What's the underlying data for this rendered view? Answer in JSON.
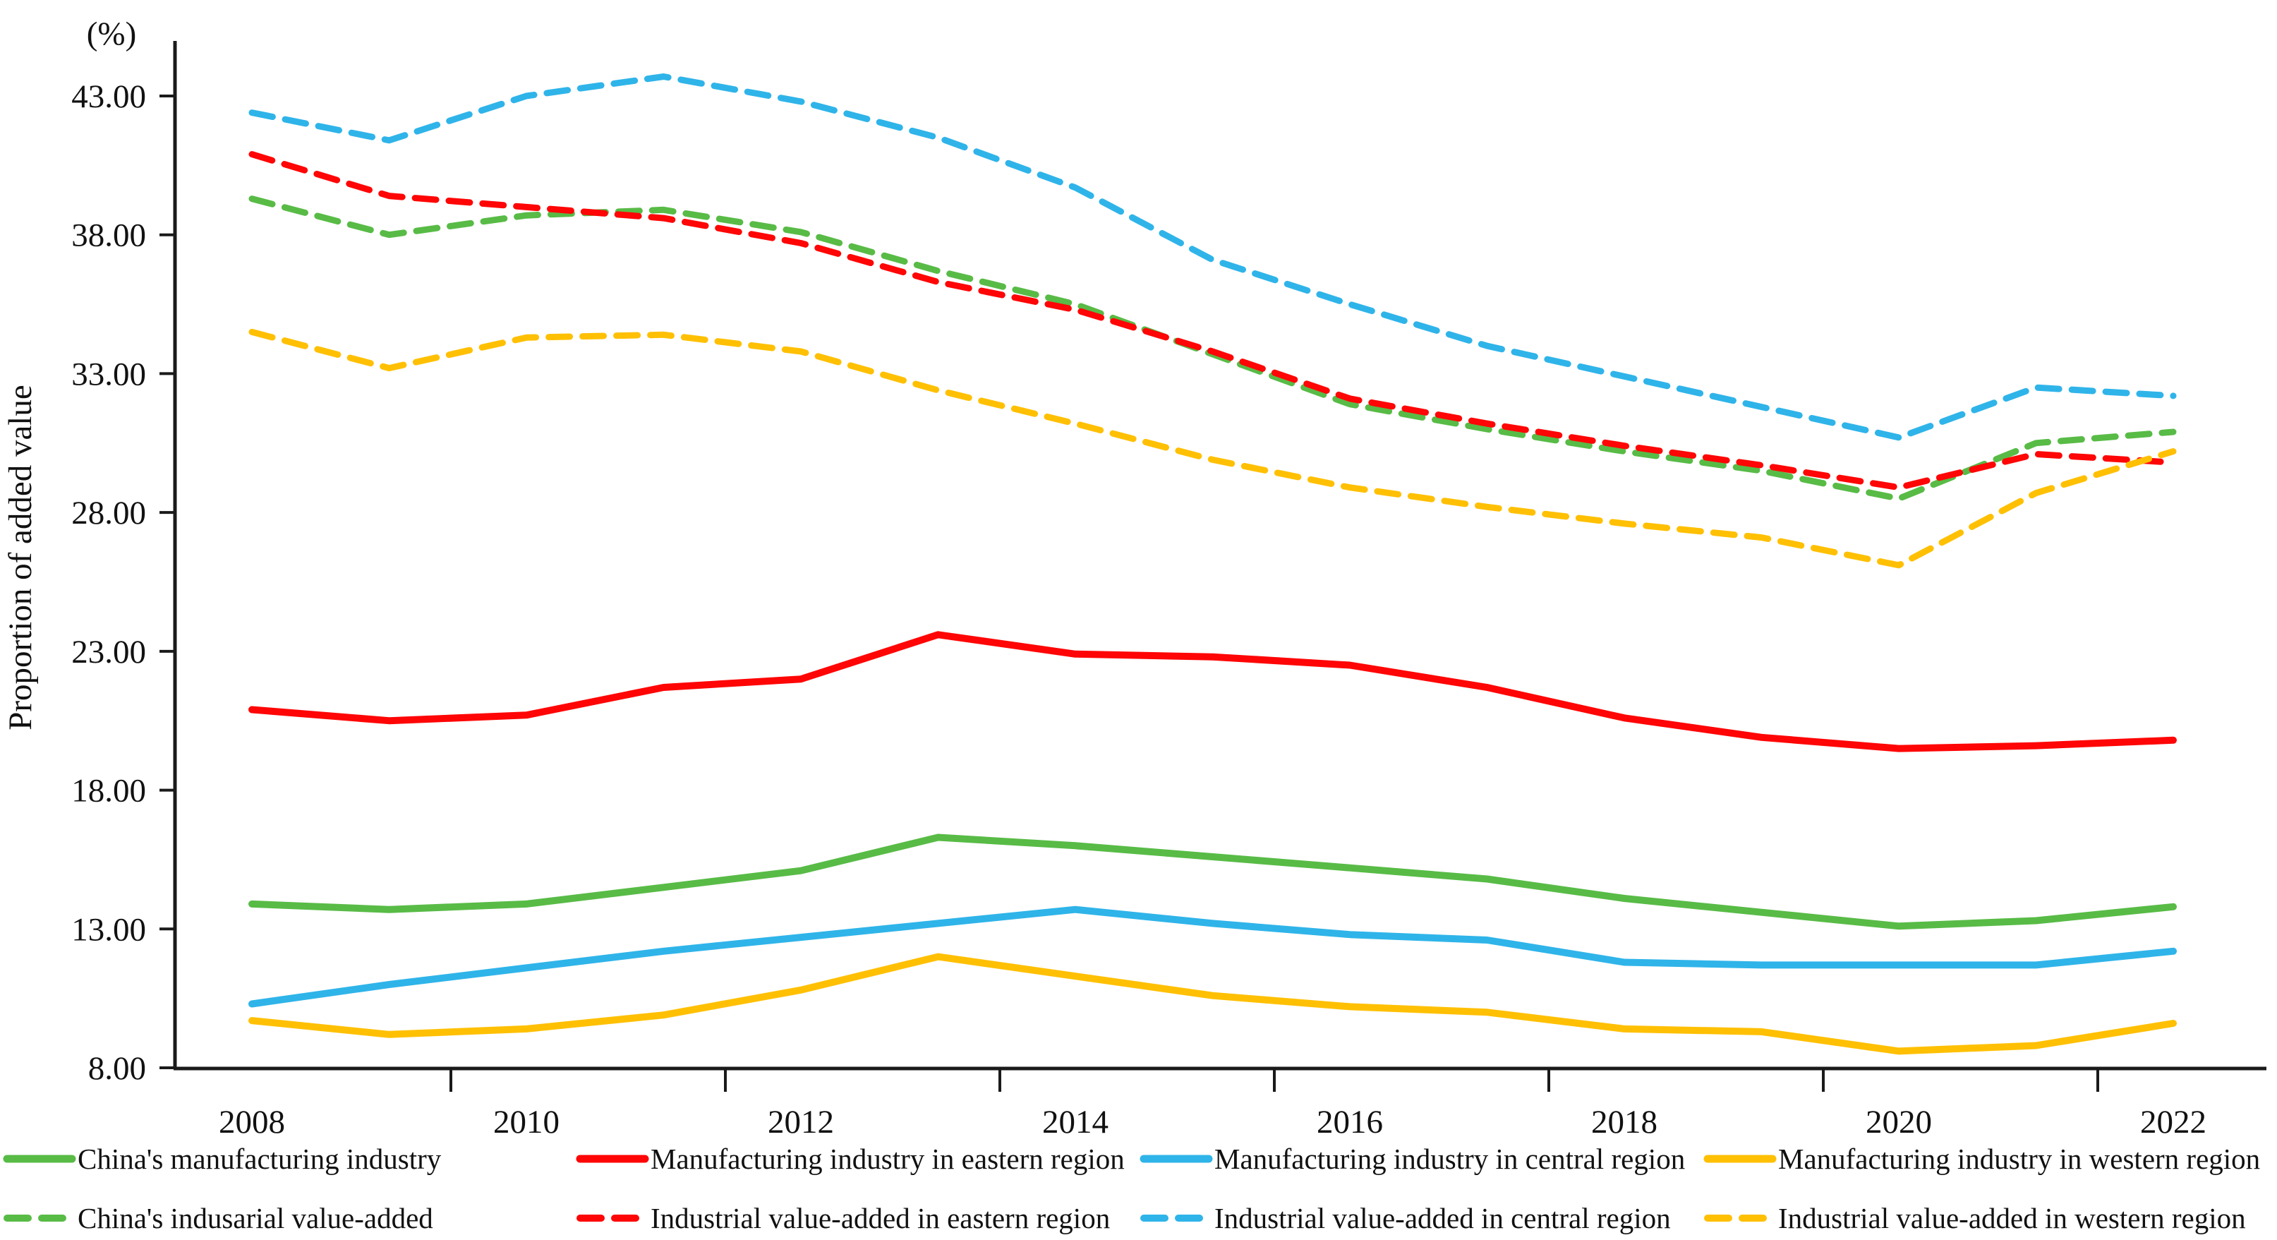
{
  "chart_data": {
    "type": "line",
    "title": "",
    "unit_label": "(%)",
    "xlabel": "",
    "ylabel": "Proportion of added value",
    "x": [
      2008,
      2009,
      2010,
      2011,
      2012,
      2013,
      2014,
      2015,
      2016,
      2017,
      2018,
      2019,
      2020,
      2021,
      2022
    ],
    "x_tick_labels": [
      "2008",
      "2010",
      "2012",
      "2014",
      "2016",
      "2018",
      "2020",
      "2022"
    ],
    "y_tick_labels": [
      "8.00",
      "13.00",
      "18.00",
      "23.00",
      "28.00",
      "33.00",
      "38.00",
      "43.00"
    ],
    "y_tick_values": [
      8,
      13,
      18,
      23,
      28,
      33,
      38,
      43
    ],
    "ylim": [
      8,
      45
    ],
    "grid": false,
    "legend_position": "bottom",
    "axis_color": "#1a1a1a",
    "series": [
      {
        "name": "China's manufacturing industry",
        "style": "solid",
        "color": "#58BB46",
        "values": [
          13.9,
          13.7,
          13.9,
          14.5,
          15.1,
          16.3,
          16.0,
          15.6,
          15.2,
          14.8,
          14.1,
          13.6,
          13.1,
          13.3,
          13.8
        ]
      },
      {
        "name": "Manufacturing industry in eastern region",
        "style": "solid",
        "color": "#FF0505",
        "values": [
          20.9,
          20.5,
          20.7,
          21.7,
          22.0,
          23.6,
          22.9,
          22.8,
          22.5,
          21.7,
          20.6,
          19.9,
          19.5,
          19.6,
          19.8
        ]
      },
      {
        "name": "Manufacturing industry in central region",
        "style": "solid",
        "color": "#2FB4E9",
        "values": [
          10.3,
          11.0,
          11.6,
          12.2,
          12.7,
          13.2,
          13.7,
          13.2,
          12.8,
          12.6,
          11.8,
          11.7,
          11.7,
          11.7,
          12.2
        ]
      },
      {
        "name": "Manufacturing industry in western region",
        "style": "solid",
        "color": "#FFC003",
        "values": [
          9.7,
          9.2,
          9.4,
          9.9,
          10.8,
          12.0,
          11.3,
          10.6,
          10.2,
          10.0,
          9.4,
          9.3,
          8.6,
          8.8,
          9.6
        ]
      },
      {
        "name": "China's indusarial value-added",
        "style": "dashed",
        "color": "#58BB46",
        "values": [
          39.3,
          38.0,
          38.7,
          38.9,
          38.1,
          36.7,
          35.5,
          33.7,
          31.9,
          31.0,
          30.2,
          29.5,
          28.5,
          30.5,
          30.9
        ]
      },
      {
        "name": "Industrial value-added in eastern region",
        "style": "dashed",
        "color": "#FF0505",
        "values": [
          40.9,
          39.4,
          39.0,
          38.6,
          37.7,
          36.3,
          35.3,
          33.8,
          32.1,
          31.2,
          30.4,
          29.7,
          28.9,
          30.1,
          29.8
        ]
      },
      {
        "name": "Industrial value-added in central region",
        "style": "dashed",
        "color": "#2FB4E9",
        "values": [
          42.4,
          41.4,
          43.0,
          43.7,
          42.8,
          41.5,
          39.7,
          37.1,
          35.5,
          34.0,
          32.9,
          31.8,
          30.7,
          32.5,
          32.2
        ]
      },
      {
        "name": "Industrial value-added in western region",
        "style": "dashed",
        "color": "#FFC003",
        "values": [
          34.5,
          33.2,
          34.3,
          34.4,
          33.8,
          32.4,
          31.2,
          29.9,
          28.9,
          28.2,
          27.6,
          27.1,
          26.1,
          28.7,
          30.2
        ]
      }
    ]
  }
}
